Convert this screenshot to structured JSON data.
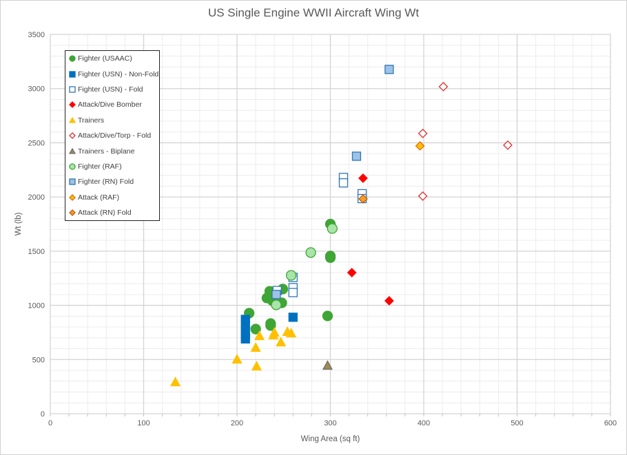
{
  "chart_data": {
    "type": "scatter",
    "title": "US Single Engine WWII Aircraft Wing Wt",
    "xlabel": "Wing Area (sq ft)",
    "ylabel": "Wt (lb)",
    "xlim": [
      0,
      600
    ],
    "ylim": [
      0,
      3500
    ],
    "xticks": [
      0,
      100,
      200,
      300,
      400,
      500,
      600
    ],
    "yticks": [
      0,
      500,
      1000,
      1500,
      2000,
      2500,
      3000,
      3500
    ],
    "grid": true,
    "legend_position": "top-left",
    "series": [
      {
        "name": "Fighter (USAAC)",
        "marker": "circle",
        "fill": "#3fa535",
        "stroke": "#3fa535",
        "points": [
          [
            213,
            928
          ],
          [
            220,
            781
          ],
          [
            236,
            832
          ],
          [
            236,
            813
          ],
          [
            235,
            1130
          ],
          [
            232,
            1067
          ],
          [
            249,
            1150
          ],
          [
            248,
            1023
          ],
          [
            238,
            1042
          ],
          [
            300,
            1750
          ],
          [
            300,
            1455
          ],
          [
            300,
            1440
          ],
          [
            297,
            902
          ]
        ]
      },
      {
        "name": "Fighter (USN) - Non-Fold",
        "marker": "square",
        "fill": "#0070c0",
        "stroke": "#0070c0",
        "points": [
          [
            209,
            870
          ],
          [
            209,
            820
          ],
          [
            209,
            770
          ],
          [
            209,
            720
          ],
          [
            209,
            690
          ],
          [
            260,
            890
          ]
        ]
      },
      {
        "name": "Fighter (USN) - Fold",
        "marker": "square",
        "fill": "#ffffff",
        "stroke": "#2e75b6",
        "points": [
          [
            314,
            2180
          ],
          [
            314,
            2130
          ],
          [
            334,
            2030
          ],
          [
            334,
            1985
          ],
          [
            260,
            1258
          ],
          [
            260,
            1163
          ],
          [
            260,
            1118
          ],
          [
            243,
            1137
          ]
        ]
      },
      {
        "name": "Attack/Dive Bomber",
        "marker": "diamond",
        "fill": "#ff0000",
        "stroke": "#ff0000",
        "points": [
          [
            335,
            2173
          ],
          [
            323,
            1302
          ],
          [
            363,
            1042
          ]
        ]
      },
      {
        "name": "Trainers",
        "marker": "triangle",
        "fill": "#ffc000",
        "stroke": "#ffc000",
        "points": [
          [
            134,
            292
          ],
          [
            200,
            502
          ],
          [
            220,
            610
          ],
          [
            221,
            438
          ],
          [
            224,
            718
          ],
          [
            239,
            724
          ],
          [
            240,
            750
          ],
          [
            247,
            660
          ],
          [
            254,
            756
          ],
          [
            258,
            743
          ]
        ]
      },
      {
        "name": "Attack/Dive/Torp - Fold",
        "marker": "diamond",
        "fill": "#ffffff",
        "stroke": "#e0302a",
        "points": [
          [
            421,
            3018
          ],
          [
            399,
            2586
          ],
          [
            490,
            2478
          ],
          [
            399,
            2008
          ]
        ]
      },
      {
        "name": "Trainers - Biplane",
        "marker": "triangle",
        "fill": "#a08a50",
        "stroke": "#707070",
        "points": [
          [
            297,
            445
          ]
        ]
      },
      {
        "name": "Fighter (RAF)",
        "marker": "circle",
        "fill": "#a9e4a9",
        "stroke": "#3fa535",
        "points": [
          [
            302,
            1709
          ],
          [
            279,
            1487
          ],
          [
            258,
            1277
          ],
          [
            242,
            1004
          ]
        ]
      },
      {
        "name": "Fighter (RN) Fold",
        "marker": "square",
        "fill": "#9dc3e6",
        "stroke": "#2e75b6",
        "points": [
          [
            363,
            3177
          ],
          [
            328,
            2376
          ],
          [
            242,
            1100
          ]
        ]
      },
      {
        "name": "Attack (RAF)",
        "marker": "diamond",
        "fill": "#ffc000",
        "stroke": "#e46c0a",
        "points": [
          [
            396,
            2471
          ]
        ]
      },
      {
        "name": "Attack (RN) Fold",
        "marker": "diamond",
        "fill": "#f4a020",
        "stroke": "#c55a11",
        "points": [
          [
            335,
            1982
          ]
        ]
      }
    ]
  }
}
